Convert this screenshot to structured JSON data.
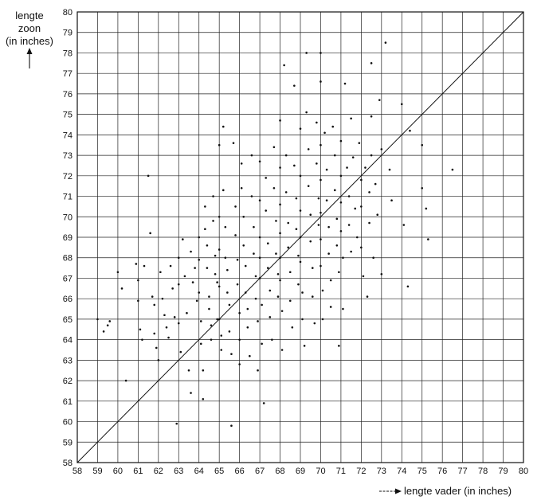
{
  "chart_data": {
    "type": "scatter",
    "title": "",
    "xlabel": "lengte vader (in inches)",
    "ylabel_lines": [
      "lengte",
      "zoon",
      "(in inches)"
    ],
    "xlim": [
      58,
      80
    ],
    "ylim": [
      58,
      80
    ],
    "xticks": [
      "58",
      "59",
      "60",
      "61",
      "62",
      "63",
      "64",
      "65",
      "66",
      "67",
      "68",
      "69",
      "70",
      "71",
      "72",
      "73",
      "74",
      "75",
      "76",
      "77",
      "78",
      "79",
      "80"
    ],
    "yticks": [
      "58",
      "59",
      "60",
      "61",
      "62",
      "63",
      "64",
      "65",
      "66",
      "67",
      "68",
      "69",
      "70",
      "71",
      "72",
      "73",
      "74",
      "75",
      "76",
      "77",
      "78",
      "79",
      "80"
    ],
    "grid": true,
    "reference_line": {
      "from": [
        58,
        58
      ],
      "to": [
        80,
        80
      ]
    },
    "point_color": "#111111",
    "line_color": "#111111",
    "points": [
      [
        59.0,
        65.0
      ],
      [
        59.3,
        64.4
      ],
      [
        59.5,
        64.7
      ],
      [
        59.6,
        64.9
      ],
      [
        60.0,
        67.3
      ],
      [
        60.2,
        66.5
      ],
      [
        60.4,
        62.0
      ],
      [
        60.9,
        67.7
      ],
      [
        61.0,
        66.9
      ],
      [
        61.0,
        65.9
      ],
      [
        61.1,
        64.5
      ],
      [
        61.2,
        64.0
      ],
      [
        61.3,
        67.6
      ],
      [
        61.5,
        72.0
      ],
      [
        61.6,
        69.2
      ],
      [
        61.7,
        66.1
      ],
      [
        61.8,
        65.7
      ],
      [
        61.8,
        64.3
      ],
      [
        61.9,
        63.6
      ],
      [
        62.0,
        63.0
      ],
      [
        62.1,
        67.3
      ],
      [
        62.2,
        66.0
      ],
      [
        62.3,
        65.2
      ],
      [
        62.4,
        64.6
      ],
      [
        62.5,
        64.1
      ],
      [
        62.6,
        67.6
      ],
      [
        62.7,
        66.5
      ],
      [
        62.8,
        65.1
      ],
      [
        62.9,
        59.9
      ],
      [
        63.0,
        68.0
      ],
      [
        63.0,
        66.7
      ],
      [
        63.0,
        64.8
      ],
      [
        63.1,
        63.4
      ],
      [
        63.2,
        68.9
      ],
      [
        63.3,
        67.1
      ],
      [
        63.4,
        65.3
      ],
      [
        63.5,
        62.5
      ],
      [
        63.6,
        61.4
      ],
      [
        63.6,
        68.3
      ],
      [
        63.7,
        66.8
      ],
      [
        63.8,
        67.5
      ],
      [
        63.9,
        65.9
      ],
      [
        64.0,
        69.0
      ],
      [
        64.0,
        67.9
      ],
      [
        64.0,
        66.3
      ],
      [
        64.1,
        64.9
      ],
      [
        64.1,
        63.8
      ],
      [
        64.2,
        62.5
      ],
      [
        64.2,
        61.1
      ],
      [
        64.3,
        70.5
      ],
      [
        64.3,
        69.4
      ],
      [
        64.4,
        68.6
      ],
      [
        64.4,
        67.5
      ],
      [
        64.5,
        66.1
      ],
      [
        64.5,
        65.5
      ],
      [
        64.6,
        64.7
      ],
      [
        64.6,
        64.0
      ],
      [
        64.7,
        71.0
      ],
      [
        64.7,
        69.8
      ],
      [
        64.8,
        68.1
      ],
      [
        64.8,
        67.2
      ],
      [
        64.9,
        66.8
      ],
      [
        64.9,
        65.0
      ],
      [
        65.0,
        73.5
      ],
      [
        65.0,
        70.0
      ],
      [
        65.0,
        68.4
      ],
      [
        65.0,
        66.6
      ],
      [
        65.0,
        65.0
      ],
      [
        65.1,
        64.2
      ],
      [
        65.1,
        63.5
      ],
      [
        65.2,
        74.4
      ],
      [
        65.2,
        71.3
      ],
      [
        65.3,
        69.5
      ],
      [
        65.3,
        68.0
      ],
      [
        65.4,
        67.4
      ],
      [
        65.4,
        66.3
      ],
      [
        65.5,
        65.7
      ],
      [
        65.5,
        64.4
      ],
      [
        65.6,
        63.3
      ],
      [
        65.6,
        59.8
      ],
      [
        65.7,
        73.6
      ],
      [
        65.8,
        70.5
      ],
      [
        65.8,
        69.1
      ],
      [
        65.9,
        67.9
      ],
      [
        65.9,
        66.7
      ],
      [
        66.0,
        65.3
      ],
      [
        66.0,
        64.0
      ],
      [
        66.0,
        62.8
      ],
      [
        66.1,
        72.6
      ],
      [
        66.1,
        71.4
      ],
      [
        66.2,
        70.0
      ],
      [
        66.2,
        68.6
      ],
      [
        66.3,
        67.6
      ],
      [
        66.3,
        66.3
      ],
      [
        66.4,
        65.5
      ],
      [
        66.4,
        64.6
      ],
      [
        66.5,
        63.2
      ],
      [
        66.6,
        73.0
      ],
      [
        66.6,
        71.0
      ],
      [
        66.7,
        69.5
      ],
      [
        66.7,
        68.2
      ],
      [
        66.8,
        67.1
      ],
      [
        66.8,
        66.0
      ],
      [
        66.9,
        64.9
      ],
      [
        66.9,
        62.5
      ],
      [
        67.0,
        72.7
      ],
      [
        67.0,
        70.8
      ],
      [
        67.0,
        69.0
      ],
      [
        67.0,
        68.0
      ],
      [
        67.0,
        67.0
      ],
      [
        67.1,
        65.7
      ],
      [
        67.1,
        63.8
      ],
      [
        67.2,
        60.9
      ],
      [
        67.3,
        71.9
      ],
      [
        67.3,
        70.3
      ],
      [
        67.4,
        68.7
      ],
      [
        67.4,
        67.5
      ],
      [
        67.5,
        66.4
      ],
      [
        67.5,
        65.1
      ],
      [
        67.6,
        64.0
      ],
      [
        67.7,
        73.4
      ],
      [
        67.7,
        71.4
      ],
      [
        67.8,
        69.8
      ],
      [
        67.8,
        68.2
      ],
      [
        67.9,
        67.2
      ],
      [
        67.9,
        66.1
      ],
      [
        68.0,
        74.7
      ],
      [
        68.0,
        72.4
      ],
      [
        68.0,
        70.6
      ],
      [
        68.0,
        69.2
      ],
      [
        68.0,
        68.0
      ],
      [
        68.0,
        66.9
      ],
      [
        68.1,
        65.4
      ],
      [
        68.1,
        63.5
      ],
      [
        68.2,
        77.4
      ],
      [
        68.3,
        73.0
      ],
      [
        68.3,
        71.2
      ],
      [
        68.4,
        69.7
      ],
      [
        68.4,
        68.5
      ],
      [
        68.5,
        67.3
      ],
      [
        68.5,
        65.9
      ],
      [
        68.6,
        64.6
      ],
      [
        68.7,
        76.4
      ],
      [
        68.7,
        72.5
      ],
      [
        68.8,
        70.9
      ],
      [
        68.8,
        69.4
      ],
      [
        68.9,
        68.1
      ],
      [
        68.9,
        66.7
      ],
      [
        69.0,
        74.3
      ],
      [
        69.0,
        72.0
      ],
      [
        69.0,
        70.3
      ],
      [
        69.0,
        69.0
      ],
      [
        69.0,
        67.8
      ],
      [
        69.1,
        66.3
      ],
      [
        69.1,
        65.0
      ],
      [
        69.2,
        63.7
      ],
      [
        69.3,
        78.0
      ],
      [
        69.3,
        75.1
      ],
      [
        69.4,
        73.3
      ],
      [
        69.4,
        71.5
      ],
      [
        69.5,
        70.1
      ],
      [
        69.5,
        68.8
      ],
      [
        69.6,
        67.5
      ],
      [
        69.6,
        66.1
      ],
      [
        69.7,
        64.8
      ],
      [
        69.8,
        74.6
      ],
      [
        69.8,
        72.6
      ],
      [
        69.9,
        70.9
      ],
      [
        69.9,
        69.6
      ],
      [
        70.0,
        78.0
      ],
      [
        70.0,
        76.6
      ],
      [
        70.0,
        73.5
      ],
      [
        70.0,
        71.8
      ],
      [
        70.0,
        70.2
      ],
      [
        70.0,
        68.9
      ],
      [
        70.0,
        67.6
      ],
      [
        70.1,
        66.4
      ],
      [
        70.1,
        65.0
      ],
      [
        70.2,
        74.1
      ],
      [
        70.3,
        72.3
      ],
      [
        70.3,
        70.8
      ],
      [
        70.4,
        69.5
      ],
      [
        70.4,
        68.2
      ],
      [
        70.5,
        66.9
      ],
      [
        70.5,
        65.6
      ],
      [
        70.6,
        74.4
      ],
      [
        70.7,
        73.0
      ],
      [
        70.7,
        71.3
      ],
      [
        70.8,
        69.9
      ],
      [
        70.8,
        68.6
      ],
      [
        70.9,
        67.3
      ],
      [
        70.9,
        63.7
      ],
      [
        71.0,
        73.7
      ],
      [
        71.0,
        72.0
      ],
      [
        71.0,
        70.7
      ],
      [
        71.0,
        69.3
      ],
      [
        71.1,
        68.0
      ],
      [
        71.1,
        65.5
      ],
      [
        71.2,
        76.5
      ],
      [
        71.3,
        72.4
      ],
      [
        71.4,
        71.0
      ],
      [
        71.4,
        69.6
      ],
      [
        71.5,
        68.3
      ],
      [
        71.5,
        74.8
      ],
      [
        71.6,
        72.9
      ],
      [
        71.7,
        70.4
      ],
      [
        71.8,
        69.0
      ],
      [
        71.9,
        73.6
      ],
      [
        72.0,
        71.8
      ],
      [
        72.0,
        70.5
      ],
      [
        72.0,
        68.5
      ],
      [
        72.1,
        67.1
      ],
      [
        72.2,
        72.4
      ],
      [
        72.3,
        66.1
      ],
      [
        72.4,
        71.2
      ],
      [
        72.4,
        69.7
      ],
      [
        72.5,
        77.5
      ],
      [
        72.5,
        74.9
      ],
      [
        72.5,
        73.0
      ],
      [
        72.6,
        68.0
      ],
      [
        72.7,
        71.6
      ],
      [
        72.8,
        70.1
      ],
      [
        72.9,
        75.7
      ],
      [
        73.0,
        73.3
      ],
      [
        73.0,
        67.2
      ],
      [
        73.2,
        78.5
      ],
      [
        73.4,
        72.3
      ],
      [
        73.5,
        70.8
      ],
      [
        74.0,
        75.5
      ],
      [
        74.1,
        69.6
      ],
      [
        74.3,
        66.6
      ],
      [
        74.4,
        74.2
      ],
      [
        75.0,
        73.5
      ],
      [
        75.0,
        71.4
      ],
      [
        75.2,
        70.4
      ],
      [
        75.3,
        68.9
      ],
      [
        76.5,
        72.3
      ]
    ]
  },
  "reference_color": "#111111"
}
